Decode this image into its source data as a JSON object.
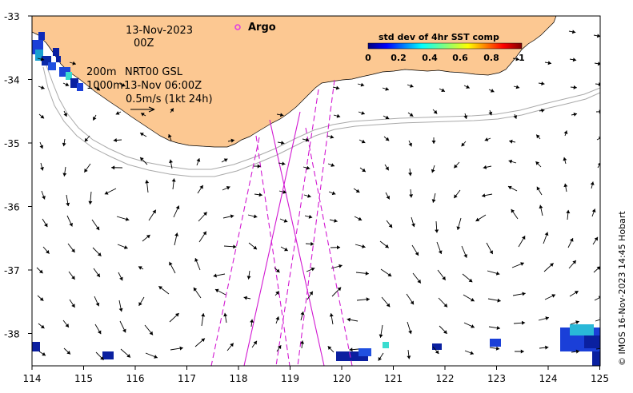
{
  "map": {
    "date_line": "13-Nov-2023",
    "time_line": "00Z",
    "isobath_label_1": "200m",
    "isobath_label_2": "1000m",
    "product_label": "NRT00 GSL",
    "product_time": "13-Nov 06:00Z",
    "scale_label": "0.5m/s (1kt 24h)",
    "argo_label": "Argo",
    "credit": "© IMOS 16-Nov-2023 14:45 Hobart",
    "colorbar": {
      "title": "std dev of 4hr SST comp",
      "ticks": [
        "0",
        "0.2",
        "0.4",
        "0.6",
        "0.8",
        "1"
      ]
    },
    "axes": {
      "x_ticks": [
        "114",
        "115",
        "116",
        "117",
        "118",
        "119",
        "120",
        "121",
        "122",
        "123",
        "124",
        "125"
      ],
      "y_ticks": [
        "-33",
        "-34",
        "-35",
        "-36",
        "-37",
        "-38"
      ]
    },
    "colors": {
      "land": "#fcc892",
      "track": "#d21ad2",
      "argo_marker": "#e040e0",
      "isobath": "#a9a9a9"
    }
  }
}
